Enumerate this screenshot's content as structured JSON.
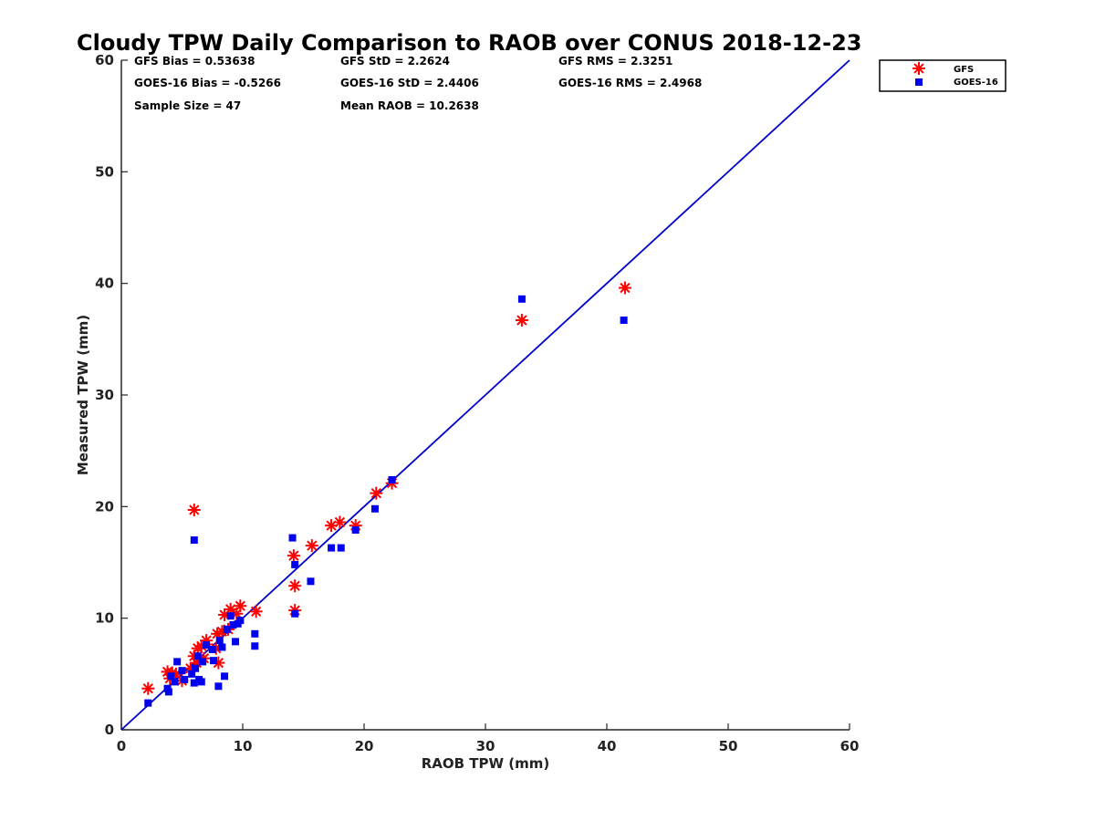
{
  "chart_data": {
    "type": "scatter",
    "title": "Cloudy TPW Daily Comparison to RAOB over CONUS 2018-12-23",
    "xlabel": "RAOB TPW (mm)",
    "ylabel": "Measured TPW (mm)",
    "xlim": [
      0,
      60
    ],
    "ylim": [
      0,
      60
    ],
    "xticks": [
      "0",
      "10",
      "20",
      "30",
      "40",
      "50",
      "60"
    ],
    "yticks": [
      "0",
      "10",
      "20",
      "30",
      "40",
      "50",
      "60"
    ],
    "grid": false,
    "legend_position": "top-right",
    "reference_line": {
      "from": [
        0,
        0
      ],
      "to": [
        60,
        60
      ],
      "color": "#0000cc"
    },
    "stats": {
      "gfs_bias": "GFS Bias = 0.53638",
      "gfs_std": "GFS StD = 2.2624",
      "gfs_rms": "GFS RMS = 2.3251",
      "goes_bias": "GOES-16 Bias = -0.5266",
      "goes_std": "GOES-16 StD = 2.4406",
      "goes_rms": "GOES-16 RMS = 2.4968",
      "sample_size": "Sample Size = 47",
      "mean_raob": "Mean RAOB = 10.2638"
    },
    "series": [
      {
        "name": "GFS",
        "color": "#ff0000",
        "marker": "asterisk",
        "points": [
          [
            2.2,
            3.7
          ],
          [
            3.8,
            5.2
          ],
          [
            4.0,
            4.6
          ],
          [
            4.2,
            5.1
          ],
          [
            4.5,
            5.0
          ],
          [
            5.0,
            4.4
          ],
          [
            5.7,
            5.5
          ],
          [
            6.0,
            6.6
          ],
          [
            6.2,
            6.0
          ],
          [
            6.3,
            7.3
          ],
          [
            6.6,
            7.5
          ],
          [
            6.8,
            6.4
          ],
          [
            7.0,
            8.0
          ],
          [
            7.8,
            7.3
          ],
          [
            7.9,
            8.6
          ],
          [
            8.3,
            8.8
          ],
          [
            8.5,
            10.3
          ],
          [
            8.8,
            9.0
          ],
          [
            9.0,
            10.8
          ],
          [
            9.5,
            10.4
          ],
          [
            9.8,
            11.1
          ],
          [
            11.1,
            10.6
          ],
          [
            8.0,
            6.0
          ],
          [
            6.0,
            19.7
          ],
          [
            14.2,
            15.6
          ],
          [
            14.3,
            12.9
          ],
          [
            14.3,
            10.7
          ],
          [
            15.7,
            16.5
          ],
          [
            17.3,
            18.3
          ],
          [
            18.0,
            18.6
          ],
          [
            19.3,
            18.3
          ],
          [
            21.0,
            21.2
          ],
          [
            22.3,
            22.1
          ],
          [
            33.0,
            36.7
          ],
          [
            41.5,
            39.6
          ]
        ]
      },
      {
        "name": "GOES-16",
        "color": "#0000ee",
        "marker": "square",
        "points": [
          [
            2.2,
            2.4
          ],
          [
            3.8,
            3.7
          ],
          [
            3.9,
            3.4
          ],
          [
            4.1,
            4.8
          ],
          [
            4.4,
            4.3
          ],
          [
            4.6,
            6.1
          ],
          [
            5.0,
            5.3
          ],
          [
            5.2,
            4.5
          ],
          [
            5.8,
            5.0
          ],
          [
            6.0,
            4.2
          ],
          [
            6.1,
            5.5
          ],
          [
            6.3,
            6.6
          ],
          [
            6.4,
            4.5
          ],
          [
            6.6,
            4.3
          ],
          [
            6.7,
            6.1
          ],
          [
            7.0,
            7.6
          ],
          [
            7.5,
            7.2
          ],
          [
            7.6,
            6.2
          ],
          [
            8.0,
            3.9
          ],
          [
            8.1,
            8.0
          ],
          [
            8.3,
            7.4
          ],
          [
            8.5,
            4.8
          ],
          [
            8.7,
            9.0
          ],
          [
            9.0,
            10.2
          ],
          [
            9.2,
            9.4
          ],
          [
            9.4,
            7.9
          ],
          [
            9.6,
            9.5
          ],
          [
            9.8,
            9.8
          ],
          [
            11.0,
            8.6
          ],
          [
            11.0,
            7.5
          ],
          [
            6.0,
            17.0
          ],
          [
            14.1,
            17.2
          ],
          [
            14.3,
            14.8
          ],
          [
            14.3,
            10.4
          ],
          [
            15.6,
            13.3
          ],
          [
            17.3,
            16.3
          ],
          [
            18.1,
            16.3
          ],
          [
            19.3,
            17.9
          ],
          [
            20.9,
            19.8
          ],
          [
            22.3,
            22.4
          ],
          [
            33.0,
            38.6
          ],
          [
            41.4,
            36.7
          ]
        ]
      }
    ]
  }
}
